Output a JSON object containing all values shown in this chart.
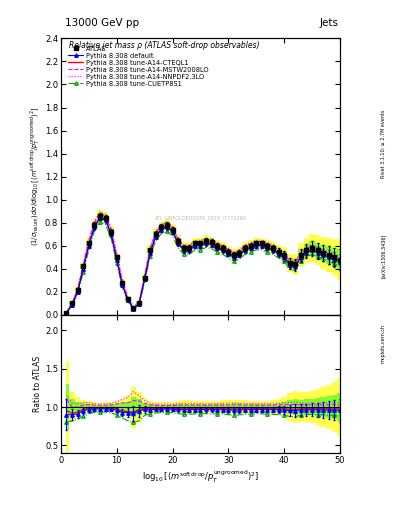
{
  "title_top": "13000 GeV pp",
  "title_right": "Jets",
  "plot_title": "Relative jet mass ρ (ATLAS soft-drop observables)",
  "ylabel_main": "(1/σ_{resum}) dσ/d log_{10}[(m^{soft drop}/p_T^{ungroomed})^2]",
  "ylabel_ratio": "Ratio to ATLAS",
  "watermark": "ATL_UNFOLDEDDATA_2019_I1772290",
  "rivet_text": "Rivet 3.1.10; ≥ 2.7M events",
  "arxiv_text": "[arXiv:1306.3436]",
  "mcplots_text": "mcplots.cern.ch",
  "ylim_main": [
    0,
    2.4
  ],
  "ylim_ratio": [
    0.4,
    2.2
  ],
  "xlim": [
    0,
    50
  ],
  "yticks_main": [
    0.0,
    0.2,
    0.4,
    0.6,
    0.8,
    1.0,
    1.2,
    1.4,
    1.6,
    1.8,
    2.0,
    2.2,
    2.4
  ],
  "yticks_ratio": [
    0.5,
    1.0,
    1.5,
    2.0
  ],
  "xticks": [
    0,
    10,
    20,
    30,
    40,
    50
  ],
  "x_data": [
    1,
    2,
    3,
    4,
    5,
    6,
    7,
    8,
    9,
    10,
    11,
    12,
    13,
    14,
    15,
    16,
    17,
    18,
    19,
    20,
    21,
    22,
    23,
    24,
    25,
    26,
    27,
    28,
    29,
    30,
    31,
    32,
    33,
    34,
    35,
    36,
    37,
    38,
    39,
    40,
    41,
    42,
    43,
    44,
    45,
    46,
    47,
    48,
    49,
    50
  ],
  "atlas_y": [
    0.02,
    0.1,
    0.22,
    0.42,
    0.62,
    0.78,
    0.86,
    0.84,
    0.72,
    0.5,
    0.28,
    0.14,
    0.06,
    0.1,
    0.32,
    0.56,
    0.7,
    0.76,
    0.78,
    0.74,
    0.64,
    0.58,
    0.58,
    0.62,
    0.62,
    0.64,
    0.63,
    0.6,
    0.58,
    0.55,
    0.52,
    0.54,
    0.58,
    0.6,
    0.62,
    0.62,
    0.6,
    0.58,
    0.55,
    0.52,
    0.45,
    0.44,
    0.52,
    0.56,
    0.58,
    0.56,
    0.54,
    0.52,
    0.5,
    0.48
  ],
  "atlas_yerr": [
    0.006,
    0.01,
    0.015,
    0.02,
    0.025,
    0.025,
    0.025,
    0.025,
    0.025,
    0.02,
    0.015,
    0.01,
    0.008,
    0.01,
    0.018,
    0.022,
    0.025,
    0.025,
    0.025,
    0.025,
    0.025,
    0.025,
    0.025,
    0.025,
    0.025,
    0.025,
    0.025,
    0.025,
    0.025,
    0.025,
    0.025,
    0.025,
    0.025,
    0.025,
    0.025,
    0.025,
    0.025,
    0.025,
    0.03,
    0.035,
    0.04,
    0.045,
    0.05,
    0.055,
    0.06,
    0.065,
    0.07,
    0.075,
    0.08,
    0.09
  ],
  "default_y": [
    0.018,
    0.09,
    0.2,
    0.4,
    0.6,
    0.76,
    0.84,
    0.82,
    0.7,
    0.48,
    0.26,
    0.13,
    0.055,
    0.095,
    0.31,
    0.54,
    0.68,
    0.74,
    0.76,
    0.72,
    0.62,
    0.56,
    0.56,
    0.6,
    0.6,
    0.62,
    0.61,
    0.58,
    0.56,
    0.53,
    0.5,
    0.52,
    0.56,
    0.58,
    0.6,
    0.6,
    0.58,
    0.56,
    0.53,
    0.5,
    0.43,
    0.42,
    0.5,
    0.54,
    0.56,
    0.54,
    0.52,
    0.5,
    0.48,
    0.46
  ],
  "default_yerr": [
    0.004,
    0.007,
    0.012,
    0.016,
    0.02,
    0.02,
    0.02,
    0.02,
    0.02,
    0.016,
    0.012,
    0.008,
    0.006,
    0.008,
    0.014,
    0.018,
    0.02,
    0.02,
    0.02,
    0.02,
    0.02,
    0.02,
    0.02,
    0.02,
    0.02,
    0.02,
    0.02,
    0.02,
    0.02,
    0.02,
    0.02,
    0.02,
    0.02,
    0.02,
    0.02,
    0.02,
    0.02,
    0.02,
    0.024,
    0.028,
    0.032,
    0.036,
    0.04,
    0.044,
    0.048,
    0.052,
    0.056,
    0.06,
    0.064,
    0.072
  ],
  "cteql1_y": [
    0.019,
    0.092,
    0.205,
    0.408,
    0.61,
    0.77,
    0.848,
    0.828,
    0.708,
    0.488,
    0.265,
    0.132,
    0.056,
    0.097,
    0.315,
    0.548,
    0.688,
    0.748,
    0.768,
    0.728,
    0.628,
    0.568,
    0.568,
    0.608,
    0.608,
    0.628,
    0.618,
    0.588,
    0.568,
    0.538,
    0.508,
    0.528,
    0.568,
    0.588,
    0.608,
    0.608,
    0.588,
    0.568,
    0.538,
    0.508,
    0.438,
    0.428,
    0.508,
    0.548,
    0.568,
    0.548,
    0.528,
    0.508,
    0.488,
    0.468
  ],
  "mstw_y": [
    0.022,
    0.1,
    0.22,
    0.43,
    0.64,
    0.8,
    0.88,
    0.86,
    0.74,
    0.52,
    0.295,
    0.148,
    0.065,
    0.108,
    0.335,
    0.575,
    0.715,
    0.775,
    0.795,
    0.755,
    0.655,
    0.595,
    0.595,
    0.635,
    0.635,
    0.655,
    0.645,
    0.615,
    0.595,
    0.565,
    0.535,
    0.555,
    0.595,
    0.615,
    0.635,
    0.635,
    0.615,
    0.595,
    0.565,
    0.535,
    0.465,
    0.455,
    0.535,
    0.575,
    0.595,
    0.575,
    0.555,
    0.535,
    0.515,
    0.495
  ],
  "nnpdf_y": [
    0.023,
    0.105,
    0.23,
    0.445,
    0.655,
    0.815,
    0.895,
    0.875,
    0.755,
    0.535,
    0.308,
    0.158,
    0.072,
    0.115,
    0.348,
    0.588,
    0.728,
    0.788,
    0.808,
    0.768,
    0.668,
    0.608,
    0.608,
    0.648,
    0.648,
    0.668,
    0.658,
    0.628,
    0.608,
    0.578,
    0.548,
    0.568,
    0.608,
    0.628,
    0.648,
    0.648,
    0.628,
    0.608,
    0.578,
    0.548,
    0.478,
    0.468,
    0.548,
    0.588,
    0.608,
    0.588,
    0.568,
    0.548,
    0.528,
    0.508
  ],
  "cuetp_y": [
    0.016,
    0.082,
    0.185,
    0.37,
    0.565,
    0.725,
    0.805,
    0.785,
    0.665,
    0.45,
    0.24,
    0.115,
    0.048,
    0.082,
    0.285,
    0.512,
    0.645,
    0.705,
    0.725,
    0.685,
    0.585,
    0.525,
    0.525,
    0.565,
    0.565,
    0.585,
    0.575,
    0.545,
    0.525,
    0.495,
    0.465,
    0.485,
    0.525,
    0.545,
    0.565,
    0.565,
    0.545,
    0.525,
    0.495,
    0.465,
    0.395,
    0.385,
    0.465,
    0.505,
    0.525,
    0.505,
    0.485,
    0.465,
    0.445,
    0.425
  ],
  "bg_yellow": "#ffff00",
  "bg_green": "#00ff00"
}
